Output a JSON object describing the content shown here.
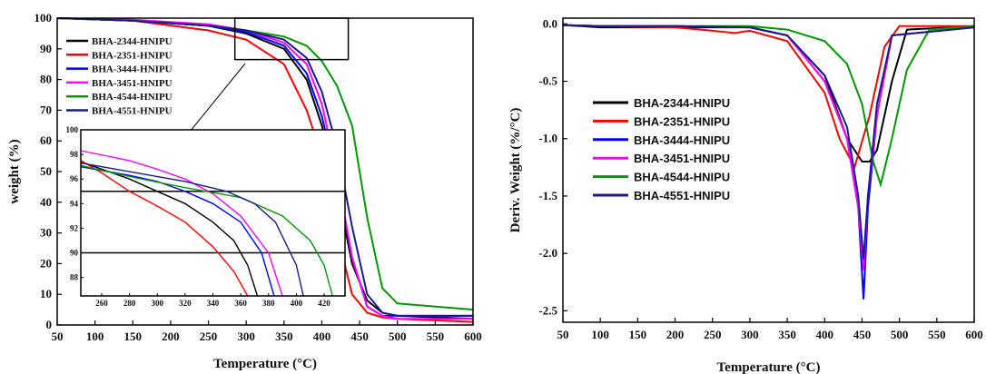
{
  "chart_data": [
    {
      "type": "line",
      "title": "",
      "xlabel": "Temperature (°C)",
      "ylabel": "weight (%)",
      "xlim": [
        50,
        600
      ],
      "ylim": [
        0,
        100
      ],
      "xticks": [
        "50",
        "100",
        "150",
        "200",
        "250",
        "300",
        "350",
        "400",
        "450",
        "500",
        "550",
        "600"
      ],
      "yticks": [
        "0",
        "10",
        "20",
        "30",
        "40",
        "50",
        "60",
        "70",
        "80",
        "90",
        "100"
      ],
      "legend_position": "top-left",
      "series": [
        {
          "name": "BHA-2344-HNIPU",
          "color": "#000000",
          "x": [
            50,
            150,
            250,
            300,
            350,
            380,
            400,
            420,
            440,
            460,
            480,
            500,
            600
          ],
          "y": [
            100,
            99.2,
            97.5,
            95,
            90,
            80,
            65,
            45,
            20,
            8,
            4,
            3,
            2
          ]
        },
        {
          "name": "BHA-2351-HNIPU",
          "color": "#ff0000",
          "x": [
            50,
            150,
            250,
            300,
            350,
            380,
            400,
            420,
            440,
            460,
            480,
            500,
            600
          ],
          "y": [
            100,
            99.2,
            96,
            93,
            85,
            70,
            55,
            30,
            10,
            4,
            2.5,
            2,
            1
          ]
        },
        {
          "name": "BHA-3444-HNIPU",
          "color": "#0000ff",
          "x": [
            50,
            150,
            250,
            300,
            350,
            380,
            400,
            420,
            440,
            460,
            480,
            500,
            600
          ],
          "y": [
            100,
            99.2,
            97.5,
            95.5,
            91,
            82,
            68,
            48,
            22,
            6,
            3,
            3,
            3
          ]
        },
        {
          "name": "BHA-3451-HNIPU",
          "color": "#ff00ff",
          "x": [
            50,
            150,
            250,
            300,
            350,
            380,
            400,
            420,
            440,
            460,
            480,
            500,
            600
          ],
          "y": [
            100,
            99.5,
            98,
            96,
            92,
            85,
            72,
            50,
            22,
            6,
            3,
            2,
            2
          ]
        },
        {
          "name": "BHA-4544-HNIPU",
          "color": "#009900",
          "x": [
            50,
            150,
            250,
            300,
            350,
            380,
            400,
            420,
            440,
            460,
            480,
            500,
            600
          ],
          "y": [
            100,
            99.2,
            97.5,
            96,
            94,
            91,
            86,
            78,
            65,
            35,
            12,
            7,
            5
          ]
        },
        {
          "name": "BHA-4551-HNIPU",
          "color": "#1a1a8c",
          "x": [
            50,
            150,
            250,
            300,
            350,
            380,
            400,
            420,
            440,
            460,
            480,
            500,
            600
          ],
          "y": [
            100,
            99.2,
            97.5,
            96,
            93,
            87,
            76,
            58,
            32,
            10,
            4,
            3,
            3
          ]
        }
      ],
      "inset": {
        "xlim": [
          245,
          435
        ],
        "ylim": [
          86.5,
          100
        ],
        "xticks": [
          "260",
          "280",
          "300",
          "320",
          "340",
          "360",
          "380",
          "400",
          "420"
        ],
        "yticks": [
          "88",
          "90",
          "92",
          "94",
          "96",
          "98",
          "100"
        ],
        "hlines": [
          95,
          90
        ],
        "series": [
          {
            "name": "BHA-2344-HNIPU",
            "color": "#000000",
            "x": [
              245,
              280,
              300,
              320,
              340,
              355,
              365,
              372
            ],
            "y": [
              97.4,
              96,
              95,
              94,
              92.5,
              91,
              89,
              86.5
            ]
          },
          {
            "name": "BHA-2351-HNIPU",
            "color": "#ff0000",
            "x": [
              245,
              260,
              280,
              300,
              320,
              340,
              355,
              365
            ],
            "y": [
              97.5,
              96.5,
              95,
              93.8,
              92.5,
              90.5,
              88.5,
              86.5
            ]
          },
          {
            "name": "BHA-3444-HNIPU",
            "color": "#0000ff",
            "x": [
              245,
              280,
              300,
              320,
              340,
              360,
              375,
              384
            ],
            "y": [
              97,
              96.3,
              95.8,
              95,
              94,
              92.5,
              90,
              86.5
            ]
          },
          {
            "name": "BHA-3451-HNIPU",
            "color": "#ff00ff",
            "x": [
              245,
              280,
              300,
              320,
              340,
              360,
              380,
              390
            ],
            "y": [
              98.3,
              97.5,
              96.8,
              96,
              94.8,
              93,
              90,
              86.5
            ]
          },
          {
            "name": "BHA-4544-HNIPU",
            "color": "#009900",
            "x": [
              245,
              280,
              320,
              360,
              390,
              410,
              420,
              426
            ],
            "y": [
              97.1,
              96.2,
              95.3,
              94.5,
              93,
              91,
              89,
              86.5
            ]
          },
          {
            "name": "BHA-4551-HNIPU",
            "color": "#1a1a8c",
            "x": [
              245,
              280,
              320,
              350,
              370,
              385,
              400,
              405
            ],
            "y": [
              97.3,
              96.6,
              95.8,
              95,
              94,
              92.5,
              89,
              86.5
            ]
          }
        ]
      }
    },
    {
      "type": "line",
      "title": "",
      "xlabel": "Temperature (°C)",
      "ylabel": "Deriv. Weight (%/°C)",
      "xlim": [
        50,
        600
      ],
      "ylim": [
        -2.6,
        0.05
      ],
      "xticks": [
        "50",
        "100",
        "150",
        "200",
        "250",
        "300",
        "350",
        "400",
        "450",
        "500",
        "550",
        "600"
      ],
      "yticks": [
        "0.0",
        "-0.5",
        "-1.0",
        "-1.5",
        "-2.0",
        "-2.5"
      ],
      "legend_position": "center-left",
      "series": [
        {
          "name": "BHA-2344-HNIPU",
          "color": "#000000",
          "x": [
            50,
            100,
            200,
            300,
            350,
            400,
            430,
            450,
            460,
            470,
            490,
            510,
            600
          ],
          "y": [
            -0.01,
            -0.03,
            -0.03,
            -0.03,
            -0.1,
            -0.45,
            -1.0,
            -1.2,
            -1.2,
            -1.1,
            -0.5,
            -0.05,
            -0.02
          ]
        },
        {
          "name": "BHA-2351-HNIPU",
          "color": "#ff0000",
          "x": [
            50,
            100,
            200,
            250,
            280,
            300,
            350,
            400,
            420,
            440,
            460,
            480,
            500,
            600
          ],
          "y": [
            -0.01,
            -0.02,
            -0.03,
            -0.06,
            -0.08,
            -0.06,
            -0.15,
            -0.6,
            -1.0,
            -1.25,
            -0.8,
            -0.2,
            -0.02,
            -0.02
          ]
        },
        {
          "name": "BHA-3444-HNIPU",
          "color": "#0000ff",
          "x": [
            50,
            100,
            200,
            300,
            350,
            400,
            430,
            445,
            452,
            458,
            470,
            490,
            600
          ],
          "y": [
            -0.01,
            -0.02,
            -0.02,
            -0.03,
            -0.1,
            -0.5,
            -1.0,
            -1.6,
            -2.4,
            -1.6,
            -0.8,
            -0.1,
            -0.03
          ]
        },
        {
          "name": "BHA-3451-HNIPU",
          "color": "#ff00ff",
          "x": [
            50,
            100,
            200,
            300,
            350,
            400,
            430,
            445,
            452,
            458,
            470,
            490,
            600
          ],
          "y": [
            -0.01,
            -0.02,
            -0.02,
            -0.03,
            -0.1,
            -0.5,
            -1.0,
            -1.6,
            -2.15,
            -1.5,
            -0.8,
            -0.1,
            -0.03
          ]
        },
        {
          "name": "BHA-4544-HNIPU",
          "color": "#009900",
          "x": [
            50,
            100,
            200,
            300,
            350,
            400,
            430,
            450,
            465,
            475,
            490,
            510,
            540,
            600
          ],
          "y": [
            -0.01,
            -0.02,
            -0.02,
            -0.02,
            -0.05,
            -0.15,
            -0.35,
            -0.7,
            -1.2,
            -1.4,
            -1.0,
            -0.4,
            -0.05,
            -0.02
          ]
        },
        {
          "name": "BHA-4551-HNIPU",
          "color": "#1a1a8c",
          "x": [
            50,
            100,
            200,
            300,
            350,
            400,
            430,
            445,
            452,
            458,
            470,
            490,
            600
          ],
          "y": [
            -0.01,
            -0.02,
            -0.02,
            -0.03,
            -0.1,
            -0.45,
            -0.9,
            -1.5,
            -2.05,
            -1.5,
            -0.7,
            -0.1,
            -0.03
          ]
        }
      ]
    }
  ]
}
